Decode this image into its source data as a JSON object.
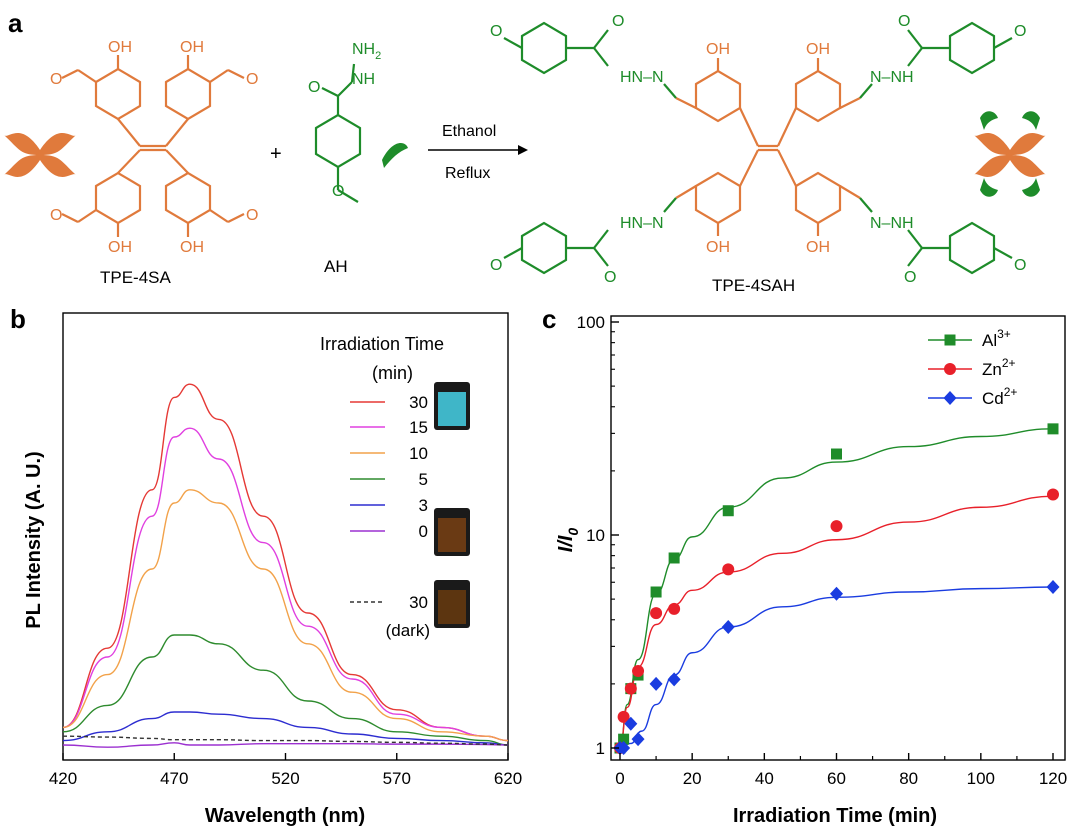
{
  "colors": {
    "orange": "#e07a3c",
    "green": "#1e8c2a",
    "red": "#e53935",
    "magenta": "#e040e0",
    "light_orange": "#f2a24a",
    "dark_green": "#2e8b2e",
    "blue": "#2d2dd0",
    "purple": "#9b30d0",
    "marker_green": "#1f8c2a",
    "marker_red": "#e8202a",
    "marker_blue": "#1a3ce0"
  },
  "panel_a": {
    "label": "a",
    "reactant1_name": "TPE-4SA",
    "reactant2_name": "AH",
    "product_name": "TPE-4SAH",
    "plus": "+",
    "condition_top": "Ethanol",
    "condition_bottom": "Reflux",
    "atoms": {
      "OH": "OH",
      "O": "O",
      "NH2": "NH",
      "sub2": "2",
      "NH": "NH",
      "HN_N": "HN–N",
      "N_NH": "N–NH"
    }
  },
  "chart_data": [
    {
      "panel": "b",
      "type": "line",
      "xlabel": "Wavelength (nm)",
      "ylabel": "PL Intensity (A. U.)",
      "xlim": [
        420,
        620
      ],
      "x_ticks": [
        "420",
        "470",
        "520",
        "570",
        "620"
      ],
      "legend_title_line1": "Irradiation Time",
      "legend_title_line2": "(min)",
      "legend_placement": "top-right",
      "x": [
        420,
        440,
        460,
        470,
        477,
        490,
        510,
        530,
        550,
        570,
        590,
        610,
        620
      ],
      "series": [
        {
          "name": "30",
          "color_key": "red",
          "values": [
            0.04,
            0.22,
            0.58,
            0.79,
            0.82,
            0.74,
            0.52,
            0.3,
            0.16,
            0.08,
            0.04,
            0.02,
            0.01
          ]
        },
        {
          "name": "15",
          "color_key": "magenta",
          "values": [
            0.04,
            0.2,
            0.52,
            0.7,
            0.72,
            0.65,
            0.46,
            0.27,
            0.15,
            0.07,
            0.04,
            0.02,
            0.01
          ]
        },
        {
          "name": "10",
          "color_key": "light_orange",
          "values": [
            0.04,
            0.16,
            0.4,
            0.55,
            0.58,
            0.55,
            0.4,
            0.23,
            0.12,
            0.06,
            0.03,
            0.02,
            0.01
          ]
        },
        {
          "name": "5",
          "color_key": "dark_green",
          "values": [
            0.03,
            0.09,
            0.2,
            0.25,
            0.25,
            0.23,
            0.17,
            0.1,
            0.06,
            0.03,
            0.02,
            0.01,
            0.0
          ]
        },
        {
          "name": "3",
          "color_key": "blue",
          "values": [
            0.01,
            0.03,
            0.06,
            0.075,
            0.075,
            0.07,
            0.06,
            0.04,
            0.025,
            0.015,
            0.01,
            0.005,
            0.0
          ]
        },
        {
          "name": "0",
          "color_key": "purple",
          "values": [
            0.0,
            -0.005,
            0.0,
            0.005,
            0.0,
            0.0,
            0.003,
            0.003,
            0.003,
            0.002,
            0.002,
            0.001,
            0.0
          ]
        },
        {
          "name": "30\n(dark)",
          "label_line1": "30",
          "label_line2": "(dark)",
          "color_key": "dashed",
          "dashed": true,
          "values": [
            0.02,
            0.018,
            0.015,
            0.012,
            0.012,
            0.012,
            0.01,
            0.01,
            0.008,
            0.006,
            0.004,
            0.002,
            0.0
          ]
        }
      ]
    },
    {
      "panel": "c",
      "type": "scatter",
      "xlabel": "Irradiation Time (min)",
      "ylabel": "I/I0",
      "ylabel_main": "I/I",
      "ylabel_sub": "0",
      "xlim": [
        0,
        120
      ],
      "ylim": [
        1,
        100
      ],
      "y_scale": "log",
      "x_ticks": [
        "0",
        "20",
        "40",
        "60",
        "80",
        "100",
        "120"
      ],
      "y_ticks": [
        "1",
        "10",
        "100"
      ],
      "legend_placement": "top-right",
      "series": [
        {
          "name": "Al3+",
          "label_base": "Al",
          "label_sup": "3+",
          "marker": "square",
          "color_key": "marker_green",
          "x": [
            0,
            1,
            3,
            5,
            10,
            15,
            30,
            60,
            120
          ],
          "y": [
            1.0,
            1.1,
            1.9,
            2.2,
            5.4,
            7.8,
            13.0,
            24.0,
            31.5
          ],
          "fit": [
            [
              0,
              1.0
            ],
            [
              2,
              1.6
            ],
            [
              5,
              2.6
            ],
            [
              10,
              5.3
            ],
            [
              15,
              7.7
            ],
            [
              20,
              9.8
            ],
            [
              30,
              13.5
            ],
            [
              45,
              18.5
            ],
            [
              60,
              22
            ],
            [
              80,
              26
            ],
            [
              100,
              29
            ],
            [
              120,
              31.5
            ]
          ]
        },
        {
          "name": "Zn2+",
          "label_base": "Zn",
          "label_sup": "2+",
          "marker": "circle",
          "color_key": "marker_red",
          "x": [
            0,
            1,
            3,
            5,
            10,
            15,
            30,
            60,
            120
          ],
          "y": [
            1.0,
            1.4,
            1.9,
            2.3,
            4.3,
            4.5,
            6.9,
            11.0,
            15.5
          ],
          "fit": [
            [
              0,
              1.0
            ],
            [
              2,
              1.55
            ],
            [
              5,
              2.4
            ],
            [
              10,
              3.8
            ],
            [
              15,
              4.7
            ],
            [
              20,
              5.5
            ],
            [
              30,
              6.7
            ],
            [
              45,
              8.2
            ],
            [
              60,
              9.5
            ],
            [
              80,
              11.5
            ],
            [
              100,
              13.5
            ],
            [
              120,
              15.2
            ]
          ]
        },
        {
          "name": "Cd2+",
          "label_base": "Cd",
          "label_sup": "2+",
          "marker": "diamond",
          "color_key": "marker_blue",
          "x": [
            0,
            1,
            3,
            5,
            10,
            15,
            30,
            60,
            120
          ],
          "y": [
            1.0,
            1.0,
            1.3,
            1.1,
            2.0,
            2.1,
            3.7,
            5.3,
            5.7
          ],
          "fit": [
            [
              0,
              1.0
            ],
            [
              3,
              1.05
            ],
            [
              6,
              1.2
            ],
            [
              10,
              1.6
            ],
            [
              15,
              2.2
            ],
            [
              20,
              2.8
            ],
            [
              30,
              3.7
            ],
            [
              45,
              4.6
            ],
            [
              60,
              5.1
            ],
            [
              80,
              5.4
            ],
            [
              100,
              5.6
            ],
            [
              120,
              5.7
            ]
          ]
        }
      ]
    }
  ]
}
